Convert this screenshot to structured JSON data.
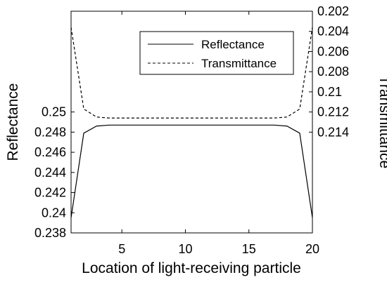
{
  "chart_data": {
    "type": "line",
    "title": "",
    "xlabel": "Location of light-receiving particle",
    "ylabel_left": "Reflectance",
    "ylabel_right": "Transmittance",
    "xlim": [
      1,
      20
    ],
    "xticks": [
      5,
      10,
      15,
      20
    ],
    "ylim_left": [
      0.238,
      0.26
    ],
    "yticks_left": [
      0.238,
      0.24,
      0.242,
      0.244,
      0.246,
      0.248,
      0.25
    ],
    "ylim_right": [
      0.202,
      0.224
    ],
    "right_axis_reversed": true,
    "yticks_right": [
      0.202,
      0.204,
      0.206,
      0.208,
      0.21,
      0.212,
      0.214
    ],
    "grid": false,
    "legend_position": "top-right",
    "x": [
      1,
      2,
      3,
      4,
      5,
      6,
      7,
      8,
      9,
      10,
      11,
      12,
      13,
      14,
      15,
      16,
      17,
      18,
      19,
      20
    ],
    "series": [
      {
        "name": "Reflectance",
        "axis": "left",
        "style": "solid",
        "values": [
          0.2395,
          0.2479,
          0.2486,
          0.2487,
          0.2487,
          0.2487,
          0.2487,
          0.2487,
          0.2487,
          0.2487,
          0.2487,
          0.2487,
          0.2487,
          0.2487,
          0.2487,
          0.2487,
          0.2487,
          0.2486,
          0.2479,
          0.2395
        ]
      },
      {
        "name": "Transmittance",
        "axis": "right",
        "style": "dashed",
        "values": [
          0.2036,
          0.2117,
          0.2125,
          0.2126,
          0.2126,
          0.2126,
          0.2126,
          0.2126,
          0.2126,
          0.2126,
          0.2126,
          0.2126,
          0.2126,
          0.2126,
          0.2126,
          0.2126,
          0.2126,
          0.2125,
          0.2117,
          0.2036
        ]
      }
    ]
  },
  "colors": {
    "line": "#000000",
    "background": "#ffffff"
  }
}
